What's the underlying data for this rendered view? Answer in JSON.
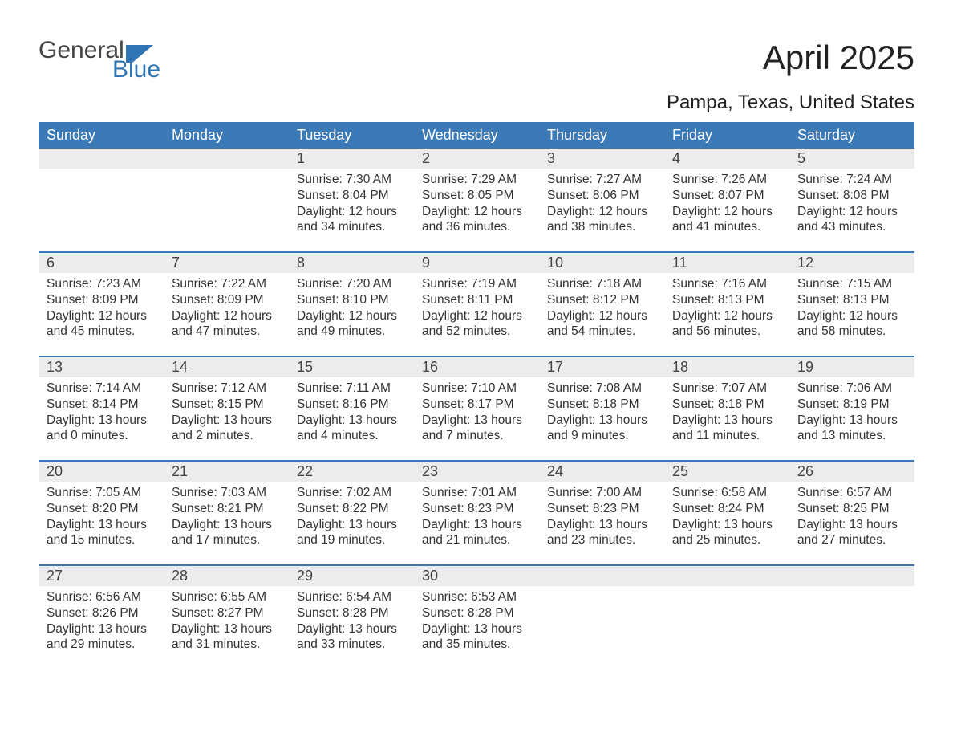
{
  "logo": {
    "text_top": "General",
    "text_bottom": "Blue",
    "top_color": "#444444",
    "bottom_color": "#2f74b5"
  },
  "title": "April 2025",
  "location": "Pampa, Texas, United States",
  "colors": {
    "header_bg": "#3b79b7",
    "header_text": "#ffffff",
    "daynum_bg": "#ececec",
    "body_text": "#333333",
    "page_bg": "#ffffff"
  },
  "dayHeaders": [
    "Sunday",
    "Monday",
    "Tuesday",
    "Wednesday",
    "Thursday",
    "Friday",
    "Saturday"
  ],
  "weeks": [
    [
      null,
      null,
      {
        "n": "1",
        "sunrise": "7:30 AM",
        "sunset": "8:04 PM",
        "daylight": "12 hours and 34 minutes."
      },
      {
        "n": "2",
        "sunrise": "7:29 AM",
        "sunset": "8:05 PM",
        "daylight": "12 hours and 36 minutes."
      },
      {
        "n": "3",
        "sunrise": "7:27 AM",
        "sunset": "8:06 PM",
        "daylight": "12 hours and 38 minutes."
      },
      {
        "n": "4",
        "sunrise": "7:26 AM",
        "sunset": "8:07 PM",
        "daylight": "12 hours and 41 minutes."
      },
      {
        "n": "5",
        "sunrise": "7:24 AM",
        "sunset": "8:08 PM",
        "daylight": "12 hours and 43 minutes."
      }
    ],
    [
      {
        "n": "6",
        "sunrise": "7:23 AM",
        "sunset": "8:09 PM",
        "daylight": "12 hours and 45 minutes."
      },
      {
        "n": "7",
        "sunrise": "7:22 AM",
        "sunset": "8:09 PM",
        "daylight": "12 hours and 47 minutes."
      },
      {
        "n": "8",
        "sunrise": "7:20 AM",
        "sunset": "8:10 PM",
        "daylight": "12 hours and 49 minutes."
      },
      {
        "n": "9",
        "sunrise": "7:19 AM",
        "sunset": "8:11 PM",
        "daylight": "12 hours and 52 minutes."
      },
      {
        "n": "10",
        "sunrise": "7:18 AM",
        "sunset": "8:12 PM",
        "daylight": "12 hours and 54 minutes."
      },
      {
        "n": "11",
        "sunrise": "7:16 AM",
        "sunset": "8:13 PM",
        "daylight": "12 hours and 56 minutes."
      },
      {
        "n": "12",
        "sunrise": "7:15 AM",
        "sunset": "8:13 PM",
        "daylight": "12 hours and 58 minutes."
      }
    ],
    [
      {
        "n": "13",
        "sunrise": "7:14 AM",
        "sunset": "8:14 PM",
        "daylight": "13 hours and 0 minutes."
      },
      {
        "n": "14",
        "sunrise": "7:12 AM",
        "sunset": "8:15 PM",
        "daylight": "13 hours and 2 minutes."
      },
      {
        "n": "15",
        "sunrise": "7:11 AM",
        "sunset": "8:16 PM",
        "daylight": "13 hours and 4 minutes."
      },
      {
        "n": "16",
        "sunrise": "7:10 AM",
        "sunset": "8:17 PM",
        "daylight": "13 hours and 7 minutes."
      },
      {
        "n": "17",
        "sunrise": "7:08 AM",
        "sunset": "8:18 PM",
        "daylight": "13 hours and 9 minutes."
      },
      {
        "n": "18",
        "sunrise": "7:07 AM",
        "sunset": "8:18 PM",
        "daylight": "13 hours and 11 minutes."
      },
      {
        "n": "19",
        "sunrise": "7:06 AM",
        "sunset": "8:19 PM",
        "daylight": "13 hours and 13 minutes."
      }
    ],
    [
      {
        "n": "20",
        "sunrise": "7:05 AM",
        "sunset": "8:20 PM",
        "daylight": "13 hours and 15 minutes."
      },
      {
        "n": "21",
        "sunrise": "7:03 AM",
        "sunset": "8:21 PM",
        "daylight": "13 hours and 17 minutes."
      },
      {
        "n": "22",
        "sunrise": "7:02 AM",
        "sunset": "8:22 PM",
        "daylight": "13 hours and 19 minutes."
      },
      {
        "n": "23",
        "sunrise": "7:01 AM",
        "sunset": "8:23 PM",
        "daylight": "13 hours and 21 minutes."
      },
      {
        "n": "24",
        "sunrise": "7:00 AM",
        "sunset": "8:23 PM",
        "daylight": "13 hours and 23 minutes."
      },
      {
        "n": "25",
        "sunrise": "6:58 AM",
        "sunset": "8:24 PM",
        "daylight": "13 hours and 25 minutes."
      },
      {
        "n": "26",
        "sunrise": "6:57 AM",
        "sunset": "8:25 PM",
        "daylight": "13 hours and 27 minutes."
      }
    ],
    [
      {
        "n": "27",
        "sunrise": "6:56 AM",
        "sunset": "8:26 PM",
        "daylight": "13 hours and 29 minutes."
      },
      {
        "n": "28",
        "sunrise": "6:55 AM",
        "sunset": "8:27 PM",
        "daylight": "13 hours and 31 minutes."
      },
      {
        "n": "29",
        "sunrise": "6:54 AM",
        "sunset": "8:28 PM",
        "daylight": "13 hours and 33 minutes."
      },
      {
        "n": "30",
        "sunrise": "6:53 AM",
        "sunset": "8:28 PM",
        "daylight": "13 hours and 35 minutes."
      },
      null,
      null,
      null
    ]
  ],
  "labels": {
    "sunrise": "Sunrise:",
    "sunset": "Sunset:",
    "daylight": "Daylight:"
  }
}
